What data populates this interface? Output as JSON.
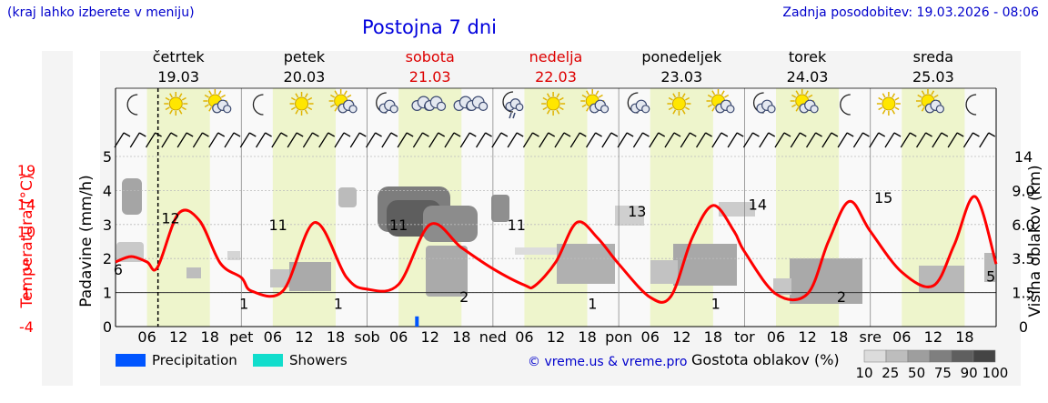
{
  "header": {
    "menu_hint": "(kraj lahko izberete v meniju)",
    "title": "Postojna 7 dni",
    "updated": "Zadnja posodobitev: 19.03.2026 - 08:06"
  },
  "colors": {
    "weekday": "#000000",
    "weekend": "#dd0000",
    "temperature": "#ff0000",
    "daylight_band": "#eef5cc",
    "precipitation": "#0055ff",
    "showers": "#11ddcc",
    "credit": "#0000cc"
  },
  "icons": [
    "moon",
    "sun",
    "sun-cloud",
    "moon",
    "sun",
    "sun-cloud",
    "moon-cloud",
    "cloud",
    "cloud",
    "moon-rain",
    "sun",
    "sun-cloud",
    "moon-cloud",
    "sun",
    "sun-cloud",
    "moon-cloud",
    "sun-cloud",
    "moon",
    "sun",
    "sun-cloud",
    "moon"
  ],
  "chart_data": {
    "type": "line",
    "title": "Postojna 7 dni",
    "days": [
      {
        "name": "četrtek",
        "date": "19.03",
        "weekend": false
      },
      {
        "name": "petek",
        "date": "20.03",
        "weekend": false
      },
      {
        "name": "sobota",
        "date": "21.03",
        "weekend": true
      },
      {
        "name": "nedelja",
        "date": "22.03",
        "weekend": true
      },
      {
        "name": "ponedeljek",
        "date": "23.03",
        "weekend": false
      },
      {
        "name": "torek",
        "date": "24.03",
        "weekend": false
      },
      {
        "name": "sreda",
        "date": "25.03",
        "weekend": false
      }
    ],
    "x_tick_labels": [
      "06",
      "12",
      "18",
      "pet",
      "06",
      "12",
      "18",
      "sob",
      "06",
      "12",
      "18",
      "ned",
      "06",
      "12",
      "18",
      "pon",
      "06",
      "12",
      "18",
      "tor",
      "06",
      "12",
      "18",
      "sre",
      "06",
      "12",
      "18"
    ],
    "x_range_hours": [
      0,
      168
    ],
    "current_time_hour": 8.1,
    "left_axis_1": {
      "label": "Temperatura (°C)",
      "ticks": [
        "19",
        "14",
        "10",
        "5",
        "1",
        "-4"
      ],
      "range": [
        -4,
        21
      ]
    },
    "left_axis_2": {
      "label": "Padavine (mm/h)",
      "ticks": [
        "5",
        "4",
        "3",
        "2",
        "1",
        "0"
      ],
      "range": [
        0,
        5
      ]
    },
    "right_axis": {
      "label": "Višina oblakov (km)",
      "ticks": [
        "14",
        "9.0",
        "6.0",
        "3.5",
        "1.5",
        "0"
      ]
    },
    "series": [
      {
        "name": "Temperatura",
        "x": [
          0,
          3,
          6,
          8,
          12,
          16,
          20,
          24,
          26,
          32,
          38,
          44,
          48,
          54,
          60,
          66,
          72,
          78,
          80,
          84,
          88,
          92,
          96,
          102,
          106,
          110,
          114,
          118,
          120,
          126,
          132,
          136,
          140,
          144,
          150,
          156,
          160,
          164,
          168
        ],
        "y": [
          5.5,
          6.3,
          5.5,
          4.7,
          12.6,
          11.6,
          5.3,
          3.2,
          1.2,
          1.3,
          11.3,
          3.3,
          1.5,
          2.2,
          11.0,
          7.6,
          4.5,
          2.1,
          2.0,
          5.5,
          11.3,
          9.0,
          5.2,
          0.3,
          0.5,
          9.0,
          13.8,
          10.0,
          7.0,
          0.8,
          0.8,
          8.5,
          14.4,
          10.0,
          4.0,
          2.0,
          8.0,
          15.1,
          5.2
        ]
      },
      {
        "name": "Precipitation",
        "x": [
          57.5
        ],
        "y": [
          0.3
        ]
      }
    ],
    "temperature_labels": [
      {
        "hour": 0.5,
        "value": "6"
      },
      {
        "hour": 10.5,
        "value": "12"
      },
      {
        "hour": 24.5,
        "value": "1"
      },
      {
        "hour": 31.0,
        "value": "11"
      },
      {
        "hour": 42.5,
        "value": "1"
      },
      {
        "hour": 54.0,
        "value": "11"
      },
      {
        "hour": 66.5,
        "value": "2"
      },
      {
        "hour": 76.5,
        "value": "11"
      },
      {
        "hour": 91.0,
        "value": "1"
      },
      {
        "hour": 99.5,
        "value": "13"
      },
      {
        "hour": 114.5,
        "value": "1"
      },
      {
        "hour": 122.5,
        "value": "14"
      },
      {
        "hour": 138.5,
        "value": "2"
      },
      {
        "hour": 146.5,
        "value": "15"
      },
      {
        "hour": 167.0,
        "value": "5"
      }
    ]
  },
  "legend": {
    "precipitation": "Precipitation",
    "showers": "Showers",
    "credit": "© vreme.us & vreme.pro",
    "cloud_density_title": "Gostota oblakov (%)",
    "cloud_density_levels": [
      "10",
      "25",
      "50",
      "75",
      "90",
      "100"
    ]
  }
}
